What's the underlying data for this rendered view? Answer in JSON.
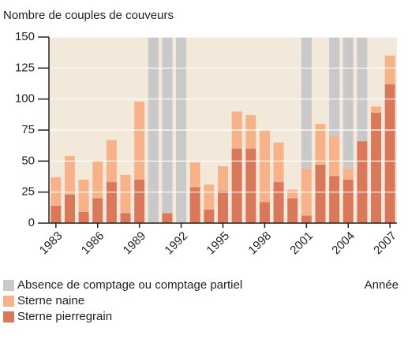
{
  "chart_data": {
    "type": "stacked_bar",
    "title": "Nombre de couples de couveurs",
    "x_label": "Année",
    "categories": [
      "1983",
      null,
      null,
      "1986",
      null,
      null,
      "1989",
      null,
      null,
      "1992",
      null,
      null,
      "1995",
      null,
      null,
      "1998",
      null,
      null,
      "2001",
      null,
      null,
      "2004",
      null,
      null,
      "2007"
    ],
    "series": [
      {
        "name": "Sterne pierregrain",
        "color": "#d9785a",
        "values": [
          14,
          23,
          9,
          20,
          33,
          8,
          35,
          0,
          8,
          0,
          29,
          11,
          26,
          60,
          60,
          17,
          33,
          20,
          6,
          47,
          38,
          35,
          66,
          89,
          112
        ]
      },
      {
        "name": "Sterne naine",
        "color": "#f7b28a",
        "values": [
          23,
          31,
          26,
          30,
          34,
          31,
          63,
          0,
          0,
          0,
          20,
          20,
          20,
          30,
          27,
          58,
          32,
          7,
          38,
          33,
          32,
          9,
          0,
          5,
          23
        ]
      },
      {
        "name": "Absence de comptage ou comptage partiel",
        "color": "#c9c9c9",
        "values": [
          0,
          0,
          0,
          0,
          0,
          0,
          0,
          150,
          142,
          150,
          0,
          0,
          0,
          0,
          0,
          0,
          0,
          0,
          106,
          0,
          80,
          106,
          84,
          0,
          0
        ]
      }
    ],
    "ylim": [
      0,
      150
    ],
    "yticks": [
      0,
      25,
      50,
      75,
      100,
      125,
      150
    ],
    "grid": true
  }
}
